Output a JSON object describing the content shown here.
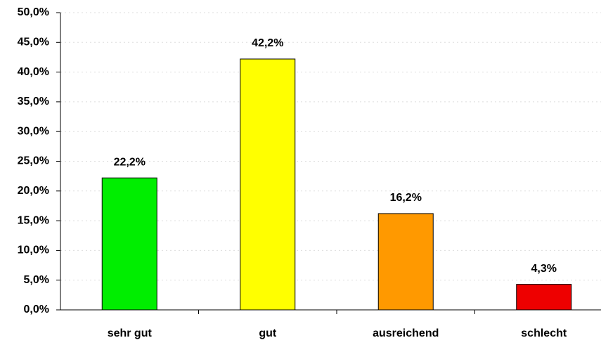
{
  "chart_data": {
    "type": "bar",
    "categories": [
      "sehr gut",
      "gut",
      "ausreichend",
      "schlecht"
    ],
    "values": [
      22.2,
      42.2,
      16.2,
      4.3
    ],
    "value_labels": [
      "22,2%",
      "42,2%",
      "16,2%",
      "4,3%"
    ],
    "colors": [
      "#00ee00",
      "#ffff00",
      "#ff9900",
      "#ee0000"
    ],
    "ylim": [
      0,
      50
    ],
    "yticks": [
      {
        "value": 0,
        "label": "0,0%"
      },
      {
        "value": 5,
        "label": "5,0%"
      },
      {
        "value": 10,
        "label": "10,0%"
      },
      {
        "value": 15,
        "label": "15,0%"
      },
      {
        "value": 20,
        "label": "20,0%"
      },
      {
        "value": 25,
        "label": "25,0%"
      },
      {
        "value": 30,
        "label": "30,0%"
      },
      {
        "value": 35,
        "label": "35,0%"
      },
      {
        "value": 40,
        "label": "40,0%"
      },
      {
        "value": 45,
        "label": "45,0%"
      },
      {
        "value": 50,
        "label": "50,0%"
      }
    ],
    "grid": true
  }
}
